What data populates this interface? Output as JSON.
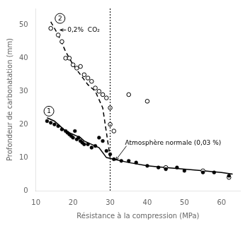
{
  "chart_data": {
    "type": "scatter",
    "xlabel": "Résistance à la compression (MPa)",
    "ylabel": "Profondeur de carbonatation (mm)",
    "xlim": [
      10,
      65
    ],
    "ylim": [
      0,
      55
    ],
    "xticks": [
      10,
      20,
      30,
      40,
      50,
      60
    ],
    "yticks": [
      0,
      10,
      20,
      30,
      40,
      50
    ],
    "grid": false,
    "series": [
      {
        "type": "line",
        "line_style": "solid",
        "color": "black",
        "x": [
          13,
          15,
          17,
          18,
          19,
          20,
          21,
          22,
          23,
          25,
          27,
          29,
          31,
          35,
          40,
          45,
          50,
          55,
          60,
          63
        ],
        "values": [
          22,
          21,
          19,
          18,
          17.5,
          17,
          16.5,
          16,
          15,
          14,
          13,
          10,
          9.5,
          8.5,
          7.5,
          7,
          6.5,
          6,
          5.5,
          5
        ]
      },
      {
        "type": "scatter",
        "marker": "circle",
        "color": "black",
        "x": [
          13,
          14,
          15,
          16,
          17,
          18,
          18.5,
          19,
          19.5,
          20,
          20.5,
          21,
          21.5,
          22,
          22.5,
          23,
          24,
          25,
          26,
          27,
          28,
          29,
          30,
          31,
          33,
          35,
          37,
          40,
          43,
          45,
          48,
          50,
          55,
          58,
          62
        ],
        "values": [
          21,
          20.5,
          20,
          19.5,
          18.5,
          18,
          17.5,
          17,
          16.5,
          16,
          18,
          15.5,
          16,
          15,
          14.5,
          14,
          14,
          13,
          13.5,
          16,
          15,
          12,
          11,
          9.5,
          9,
          9,
          8.5,
          7.5,
          7,
          6.5,
          7,
          6,
          5.5,
          5.5,
          4.5
        ]
      },
      {
        "type": "line",
        "line_style": "dashed",
        "color": "black",
        "x": [
          14,
          16,
          18,
          20,
          22,
          24,
          26,
          28,
          30
        ],
        "values": [
          51,
          47,
          42,
          38,
          35,
          32,
          30,
          25,
          10
        ]
      },
      {
        "type": "scatter",
        "marker": "open_circle",
        "color": "black",
        "x": [
          14,
          16,
          17,
          18,
          19,
          20,
          21,
          22,
          23,
          24,
          25,
          26,
          27,
          28,
          29,
          30,
          30,
          31,
          35,
          40,
          45,
          55,
          62
        ],
        "values": [
          49,
          47,
          45,
          40,
          40,
          38,
          37,
          37.5,
          35,
          34,
          33,
          31,
          30,
          29,
          28,
          25,
          20,
          18,
          29,
          27,
          7,
          6,
          4
        ]
      }
    ],
    "annotations": [
      {
        "type": "vline",
        "x": 30,
        "line_style": "dotted"
      },
      {
        "type": "circled_text",
        "text": "1",
        "x": 13.5,
        "y": 24
      },
      {
        "type": "circled_text",
        "text": "2",
        "x": 16.5,
        "y": 52
      },
      {
        "type": "arrow_text",
        "text": "0,2%  CO₂",
        "x": 18.5,
        "y": 48.5,
        "arrow_x": 16.5,
        "arrow_y": 48.5
      },
      {
        "type": "arrow_text",
        "text": "Atmosphère normale (0,03 %)",
        "x": 34,
        "y": 13.5,
        "arrow_x": 31.5,
        "arrow_y": 9.2
      }
    ]
  }
}
